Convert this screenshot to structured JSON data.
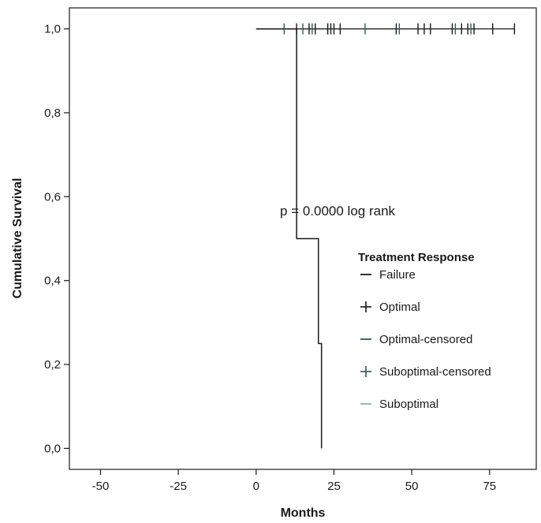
{
  "chart_data": {
    "type": "line",
    "subtype": "kaplan-meier",
    "title": "",
    "xlabel": "Months",
    "ylabel": "Cumulative Survival",
    "xlim": [
      -60,
      90
    ],
    "ylim": [
      -0.05,
      1.05
    ],
    "x_ticks": [
      -50,
      -25,
      0,
      25,
      50,
      75
    ],
    "x_tick_labels": [
      "-50",
      "-25",
      "0",
      "25",
      "50",
      "75"
    ],
    "y_ticks": [
      0.0,
      0.2,
      0.4,
      0.6,
      0.8,
      1.0
    ],
    "y_tick_labels": [
      "0,0",
      "0,2",
      "0,4",
      "0,6",
      "0,8",
      "1,0"
    ],
    "annotation": "p = 0.0000 log rank",
    "legend": {
      "title": "Treatment Response",
      "placement": "right",
      "entries": [
        {
          "label": "Failure",
          "marker": "dash",
          "color": "#1a1a1a"
        },
        {
          "label": "Optimal",
          "marker": "plus",
          "color": "#1a1a1a"
        },
        {
          "label": "Optimal-censored",
          "marker": "dash",
          "color": "#2f5a57"
        },
        {
          "label": "Suboptimal-censored",
          "marker": "plus",
          "color": "#2f5a57"
        },
        {
          "label": "Suboptimal",
          "marker": "dash",
          "color": "#8fb3b0"
        }
      ]
    },
    "series": [
      {
        "name": "Failure",
        "color": "#1a1a1a",
        "steps": [
          {
            "x": 0,
            "y": 1.0
          },
          {
            "x": 13,
            "y": 1.0
          },
          {
            "x": 13,
            "y": 0.5
          },
          {
            "x": 20,
            "y": 0.5
          },
          {
            "x": 20,
            "y": 0.25
          },
          {
            "x": 21,
            "y": 0.25
          },
          {
            "x": 21,
            "y": 0.0
          }
        ]
      },
      {
        "name": "Optimal",
        "color": "#1a1a1a",
        "line": [
          0,
          83
        ],
        "censored": [
          13,
          17,
          19,
          23,
          24,
          25,
          27,
          45,
          52,
          54,
          56,
          63,
          66,
          68,
          70,
          76,
          83
        ]
      },
      {
        "name": "Suboptimal",
        "color": "#2f5a57",
        "line_color": "#8fb3b0",
        "line": [
          0,
          70
        ],
        "censored": [
          9,
          15,
          18,
          23,
          35,
          46,
          64,
          69
        ]
      }
    ]
  }
}
